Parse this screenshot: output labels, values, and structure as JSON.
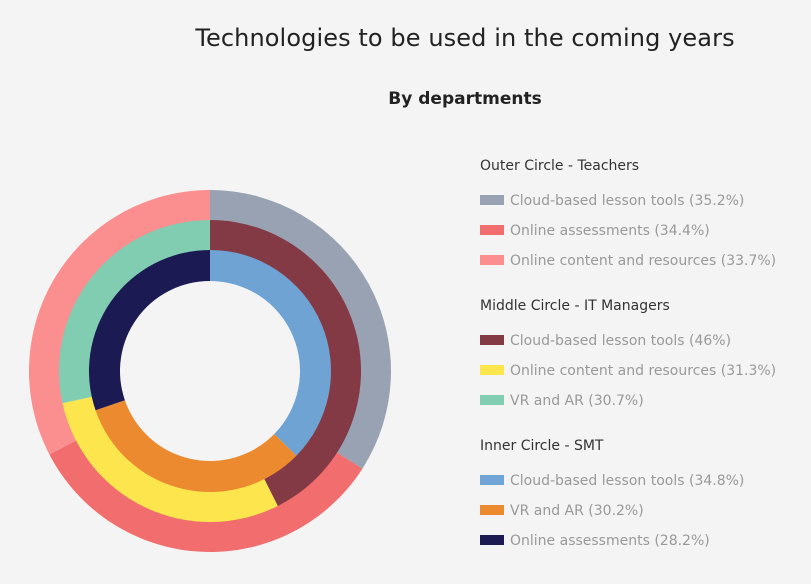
{
  "chart_data": {
    "type": "pie",
    "title": "Technologies to be used in the coming years",
    "subtitle": "By departments",
    "rings": [
      {
        "name": "Outer Circle - Teachers",
        "slices": [
          {
            "label": "Cloud-based lesson tools (35.2%)",
            "value": 35.2,
            "color": "#98a2b2"
          },
          {
            "label": "Online assessments (34.4%)",
            "value": 34.4,
            "color": "#f26d6d"
          },
          {
            "label": "Online content and resources (33.7%)",
            "value": 33.7,
            "color": "#fb8f8f"
          }
        ]
      },
      {
        "name": "Middle Circle - IT Managers",
        "slices": [
          {
            "label": "Cloud-based lesson tools (46%)",
            "value": 46,
            "color": "#833a45"
          },
          {
            "label": "Online content and resources (31.3%)",
            "value": 31.3,
            "color": "#fde54d"
          },
          {
            "label": "VR and AR (30.7%)",
            "value": 30.7,
            "color": "#80cdb2"
          }
        ]
      },
      {
        "name": "Inner Circle - SMT",
        "slices": [
          {
            "label": "Cloud-based lesson tools (34.8%)",
            "value": 34.8,
            "color": "#6ea3d3"
          },
          {
            "label": "VR and AR (30.2%)",
            "value": 30.2,
            "color": "#ec8a30"
          },
          {
            "label": "Online assessments (28.2%)",
            "value": 28.2,
            "color": "#1b1a52"
          }
        ]
      }
    ]
  }
}
